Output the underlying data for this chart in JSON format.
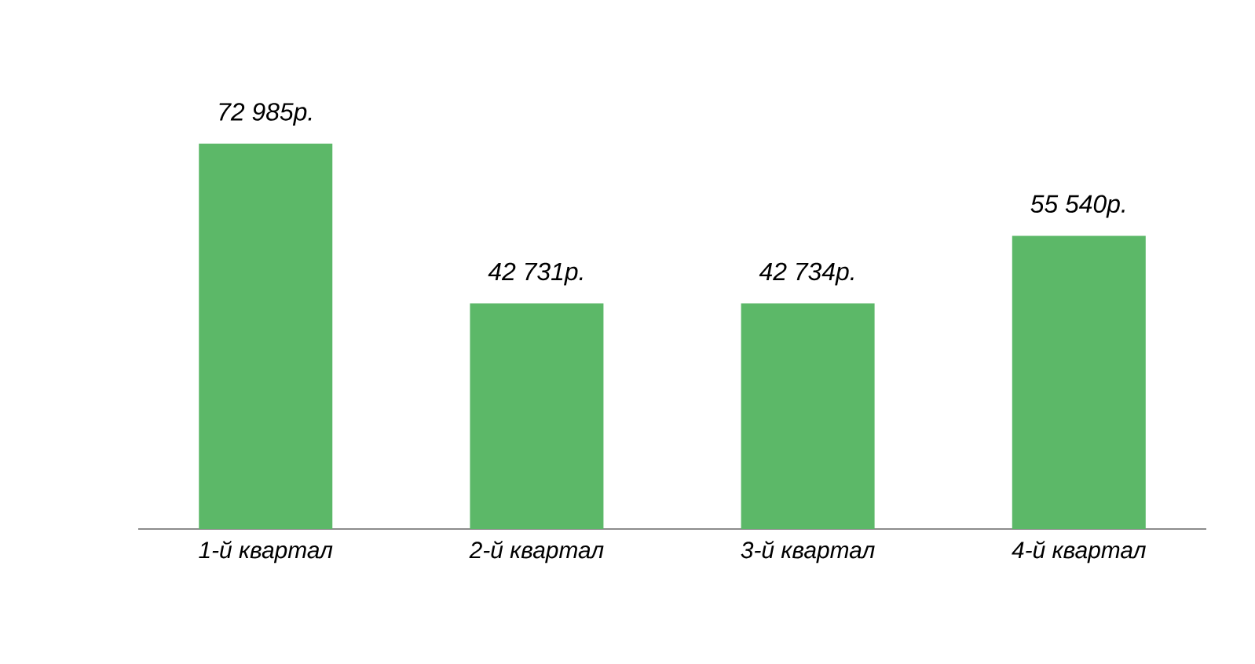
{
  "chart_data": {
    "type": "bar",
    "categories": [
      "1-й квартал",
      "2-й квартал",
      "3-й квартал",
      "4-й квартал"
    ],
    "values": [
      72985,
      42731,
      42734,
      55540
    ],
    "value_labels": [
      "72 985р.",
      "42 731р.",
      "42 734р.",
      "55 540р."
    ],
    "color": "#5cb868"
  }
}
